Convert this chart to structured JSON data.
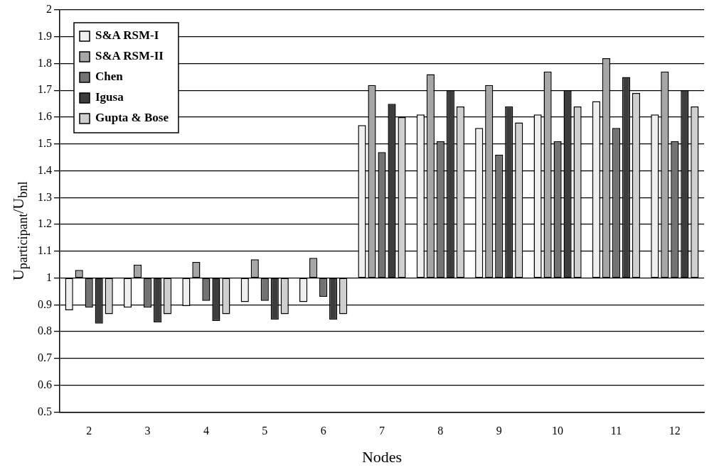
{
  "chart_data": {
    "type": "bar",
    "xlabel": "Nodes",
    "ylabel": "U$_{participant}$/U$_{bnl}$",
    "categories": [
      "2",
      "3",
      "4",
      "5",
      "6",
      "7",
      "8",
      "9",
      "10",
      "11",
      "12"
    ],
    "series": [
      {
        "name": "S&A RSM-I",
        "color": "#efefef",
        "base": [
          1,
          1,
          1,
          1,
          1,
          1,
          1,
          1,
          1,
          1,
          1
        ],
        "values": [
          -0.12,
          -0.11,
          -0.105,
          -0.09,
          -0.09,
          0.57,
          0.61,
          0.56,
          0.61,
          0.66,
          0.61
        ]
      },
      {
        "name": "S&A RSM-II",
        "color": "#a6a6a6",
        "base": [
          1,
          1,
          1,
          1,
          1,
          1,
          1,
          1,
          1,
          1,
          1
        ],
        "values": [
          0.03,
          0.05,
          0.06,
          0.07,
          0.075,
          0.72,
          0.76,
          0.72,
          0.77,
          0.82,
          0.77
        ]
      },
      {
        "name": "Chen",
        "color": "#737373",
        "base": [
          1,
          1,
          1,
          1,
          1,
          1,
          1,
          1,
          1,
          1,
          1
        ],
        "values": [
          -0.11,
          -0.11,
          -0.085,
          -0.085,
          -0.07,
          0.47,
          0.51,
          0.46,
          0.51,
          0.56,
          0.51
        ]
      },
      {
        "name": "Igusa",
        "color": "#3d3d3d",
        "base": [
          1,
          1,
          1,
          1,
          1,
          1,
          1,
          1,
          1,
          1,
          1
        ],
        "values": [
          -0.17,
          -0.165,
          -0.16,
          -0.155,
          -0.155,
          0.65,
          0.7,
          0.64,
          0.7,
          0.75,
          0.7
        ]
      },
      {
        "name": "Gupta & Bose",
        "color": "#cfcfcf",
        "base": [
          1,
          1,
          1,
          1,
          1,
          1,
          1,
          1,
          1,
          1,
          1
        ],
        "values": [
          -0.135,
          -0.135,
          -0.135,
          -0.135,
          -0.135,
          0.6,
          0.64,
          0.58,
          0.64,
          0.69,
          0.64
        ]
      }
    ],
    "ylim": [
      0.5,
      2
    ],
    "yticks": [
      0.5,
      0.6,
      0.7,
      0.8,
      0.9,
      1,
      1.1,
      1.2,
      1.3,
      1.4,
      1.5,
      1.6,
      1.7,
      1.8,
      1.9,
      2
    ],
    "grid": "y",
    "legend": "top left"
  }
}
